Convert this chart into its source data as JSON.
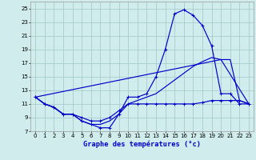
{
  "xlabel": "Graphe des températures (°c)",
  "x_ticks": [
    0,
    1,
    2,
    3,
    4,
    5,
    6,
    7,
    8,
    9,
    10,
    11,
    12,
    13,
    14,
    15,
    16,
    17,
    18,
    19,
    20,
    21,
    22,
    23
  ],
  "y_ticks": [
    7,
    9,
    11,
    13,
    15,
    17,
    19,
    21,
    23,
    25
  ],
  "ylim": [
    7,
    26
  ],
  "xlim": [
    -0.5,
    23.5
  ],
  "bg_color": "#d0ecec",
  "line_color": "#0000cc",
  "grid_color": "#a0c8c8",
  "curve1_x": [
    0,
    1,
    2,
    3,
    4,
    5,
    6,
    7,
    8,
    9,
    10,
    11,
    12,
    13,
    14,
    15,
    16,
    17,
    18,
    19,
    20,
    21,
    22,
    23
  ],
  "curve1_y": [
    12.0,
    11.0,
    10.5,
    9.5,
    9.5,
    8.5,
    8.0,
    7.5,
    7.5,
    9.5,
    12.0,
    12.0,
    12.5,
    15.0,
    19.0,
    24.2,
    24.8,
    24.0,
    22.5,
    19.5,
    12.5,
    12.5,
    11.0,
    11.0
  ],
  "curve2_x": [
    0,
    1,
    2,
    3,
    4,
    5,
    6,
    7,
    8,
    9,
    10,
    11,
    12,
    13,
    14,
    15,
    16,
    17,
    18,
    19,
    20,
    21,
    22,
    23
  ],
  "curve2_y": [
    12.0,
    11.0,
    10.5,
    9.5,
    9.5,
    9.0,
    8.5,
    8.5,
    9.0,
    10.0,
    11.0,
    11.0,
    11.0,
    11.0,
    11.0,
    11.0,
    11.0,
    11.0,
    11.2,
    11.5,
    11.5,
    11.5,
    11.5,
    11.0
  ],
  "curve3_x": [
    0,
    1,
    2,
    3,
    4,
    5,
    6,
    7,
    8,
    9,
    10,
    11,
    12,
    13,
    14,
    15,
    16,
    17,
    18,
    19,
    20,
    21,
    22,
    23
  ],
  "curve3_y": [
    12.0,
    11.0,
    10.5,
    9.5,
    9.5,
    8.5,
    8.0,
    8.0,
    8.5,
    9.5,
    11.0,
    11.5,
    12.0,
    12.5,
    13.5,
    14.5,
    15.5,
    16.5,
    17.2,
    17.8,
    17.5,
    17.5,
    11.5,
    11.0
  ],
  "curve4_x": [
    0,
    20,
    23
  ],
  "curve4_y": [
    12.0,
    17.5,
    11.0
  ]
}
